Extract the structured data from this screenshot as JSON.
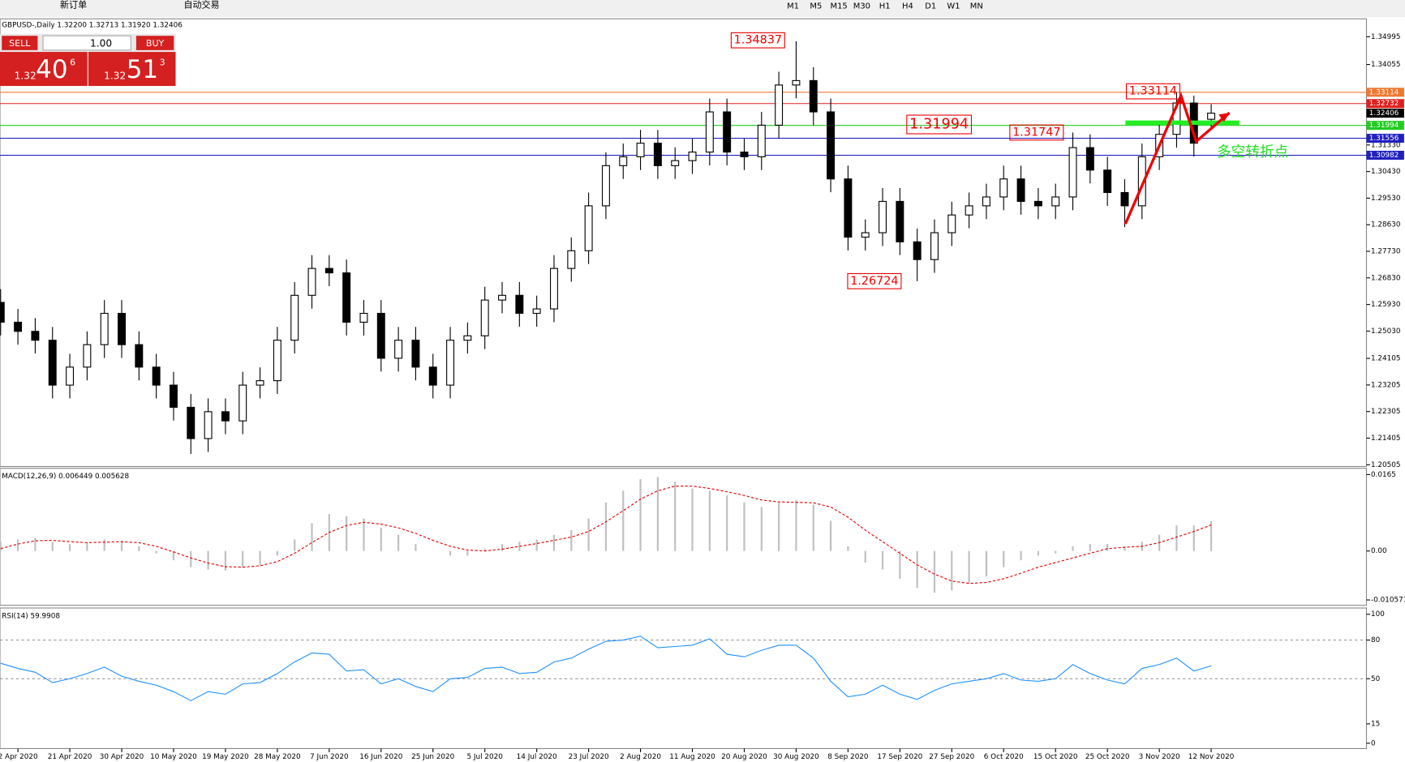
{
  "toolbar": {
    "buttons": [
      "新订单",
      "自动交易"
    ],
    "timeframes": [
      "M1",
      "M5",
      "M15",
      "M30",
      "H1",
      "H4",
      "D1",
      "W1",
      "MN"
    ]
  },
  "trade_panel": {
    "sell": "SELL",
    "buy": "BUY",
    "lots": "1.00",
    "bid_prefix": "1.32",
    "bid_big": "40",
    "bid_small": "6",
    "ask_prefix": "1.32",
    "ask_big": "51",
    "ask_small": "3"
  },
  "chart_data": [
    {
      "type": "candlestick",
      "title": "GBPUSD-,Daily 1.32200 1.32713 1.31920 1.32406",
      "categories": [
        null,
        "2 Apr 2020",
        null,
        null,
        "21 Apr 2020",
        null,
        null,
        "30 Apr 2020",
        null,
        null,
        "10 May 2020",
        null,
        null,
        "19 May 2020",
        null,
        null,
        "28 May 2020",
        null,
        null,
        "7 Jun 2020",
        null,
        null,
        "16 Jun 2020",
        null,
        null,
        "25 Jun 2020",
        null,
        null,
        "5 Jul 2020",
        null,
        null,
        "14 Jul 2020",
        null,
        null,
        "23 Jul 2020",
        null,
        null,
        "2 Aug 2020",
        null,
        null,
        "11 Aug 2020",
        null,
        null,
        "20 Aug 2020",
        null,
        null,
        "30 Aug 2020",
        null,
        null,
        "8 Sep 2020",
        null,
        null,
        "17 Sep 2020",
        null,
        null,
        "27 Sep 2020",
        null,
        null,
        "6 Oct 2020",
        null,
        null,
        "15 Oct 2020",
        null,
        null,
        "25 Oct 2020",
        null,
        null,
        "3 Nov 2020",
        null,
        null,
        "12 Nov 2020"
      ],
      "open": [
        1.26,
        1.2533,
        1.2502,
        1.2472,
        1.232,
        1.2381,
        1.2457,
        1.2563,
        1.2457,
        1.2381,
        1.232,
        1.2245,
        1.2139,
        1.223,
        1.2199,
        1.232,
        1.2335,
        1.2472,
        1.2624,
        1.2715,
        1.27,
        1.2533,
        1.2563,
        1.2411,
        1.2472,
        1.2381,
        1.232,
        1.2472,
        1.2487,
        1.2608,
        1.2624,
        1.2563,
        1.2578,
        1.2715,
        1.2775,
        1.2927,
        1.3063,
        1.3093,
        1.3139,
        1.3063,
        1.308,
        1.3109,
        1.3245,
        1.3109,
        1.3093,
        1.32,
        1.3336,
        1.3351,
        1.3245,
        1.3018,
        1.2821,
        1.2836,
        1.2942,
        1.2805,
        1.2745,
        1.2836,
        1.2896,
        1.2927,
        1.2957,
        1.3018,
        1.2942,
        1.2927,
        1.2957,
        1.3124,
        1.3048,
        1.2972,
        1.2927,
        1.3093,
        1.3169,
        1.3275,
        1.322
      ],
      "high": [
        1.2645,
        1.2578,
        1.2547,
        1.2517,
        1.2426,
        1.2502,
        1.2608,
        1.2608,
        1.2502,
        1.2426,
        1.2365,
        1.229,
        1.2275,
        1.2275,
        1.2365,
        1.238,
        1.2517,
        1.2669,
        1.276,
        1.276,
        1.2745,
        1.2608,
        1.2608,
        1.2517,
        1.2517,
        1.2426,
        1.2517,
        1.2532,
        1.2653,
        1.2669,
        1.2669,
        1.2623,
        1.276,
        1.282,
        1.2972,
        1.3108,
        1.3138,
        1.3184,
        1.3184,
        1.3125,
        1.3154,
        1.329,
        1.329,
        1.3154,
        1.3245,
        1.3381,
        1.3484,
        1.3396,
        1.329,
        1.3063,
        1.2881,
        1.2987,
        1.2987,
        1.285,
        1.2881,
        1.2941,
        1.2972,
        1.3002,
        1.3063,
        1.3063,
        1.2987,
        1.3002,
        1.3175,
        1.3169,
        1.3093,
        1.3017,
        1.3138,
        1.3214,
        1.3311,
        1.33,
        1.3271
      ],
      "low": [
        1.2488,
        1.2457,
        1.2427,
        1.2275,
        1.2275,
        1.2336,
        1.2412,
        1.2412,
        1.2336,
        1.2275,
        1.22,
        1.2087,
        1.2094,
        1.2154,
        1.2154,
        1.2275,
        1.229,
        1.2427,
        1.2579,
        1.2655,
        1.2488,
        1.2488,
        1.2366,
        1.2366,
        1.2336,
        1.2275,
        1.2275,
        1.2427,
        1.2442,
        1.2563,
        1.2518,
        1.2518,
        1.2533,
        1.267,
        1.273,
        1.2882,
        1.3018,
        1.3048,
        1.3018,
        1.3018,
        1.3035,
        1.3064,
        1.3064,
        1.3048,
        1.3048,
        1.3155,
        1.3291,
        1.32,
        1.2973,
        1.2776,
        1.2776,
        1.2791,
        1.276,
        1.2672,
        1.27,
        1.2791,
        1.2851,
        1.2882,
        1.2912,
        1.2897,
        1.2882,
        1.2882,
        1.2912,
        1.3003,
        1.2927,
        1.2855,
        1.2882,
        1.3048,
        1.3124,
        1.3094,
        1.3192
      ],
      "close": [
        1.2533,
        1.2502,
        1.2472,
        1.232,
        1.2381,
        1.2457,
        1.2563,
        1.2457,
        1.2381,
        1.232,
        1.2245,
        1.2139,
        1.223,
        1.2199,
        1.232,
        1.2335,
        1.2472,
        1.2624,
        1.2715,
        1.27,
        1.2533,
        1.2563,
        1.2411,
        1.2472,
        1.2381,
        1.232,
        1.2472,
        1.2487,
        1.2608,
        1.2624,
        1.2563,
        1.2578,
        1.2715,
        1.2775,
        1.2927,
        1.3063,
        1.3093,
        1.3139,
        1.3063,
        1.308,
        1.3109,
        1.3245,
        1.3109,
        1.3093,
        1.32,
        1.3336,
        1.3351,
        1.3245,
        1.3018,
        1.2821,
        1.2836,
        1.2942,
        1.2805,
        1.2745,
        1.2836,
        1.2896,
        1.2927,
        1.2957,
        1.3018,
        1.2942,
        1.2927,
        1.2957,
        1.3124,
        1.3048,
        1.2972,
        1.2927,
        1.3093,
        1.3169,
        1.3275,
        1.3139,
        1.32406
      ],
      "ylim": [
        1.20505,
        1.34995
      ],
      "yticks": [
        1.34995,
        1.34055,
        {
          "value": 1.3133,
          "label": "1.31330"
        },
        {
          "value": 1.3043,
          "label": "1.30430"
        },
        {
          "value": 1.2953,
          "label": "1.29530"
        },
        {
          "value": 1.2863,
          "label": "1.28630"
        },
        {
          "value": 1.2773,
          "label": "1.27730"
        },
        {
          "value": 1.2683,
          "label": "1.26830"
        },
        {
          "value": 1.2593,
          "label": "1.25930"
        },
        {
          "value": 1.2503,
          "label": "1.25030"
        },
        1.24105,
        1.23205,
        1.22305,
        1.21405,
        1.20505
      ],
      "hlines": [
        {
          "value": 1.33114,
          "color": "#f07830"
        },
        {
          "value": 1.32732,
          "color": "#e02020"
        },
        {
          "value": 1.31994,
          "color": "#22cc22"
        },
        {
          "value": 1.31556,
          "color": "#2020c0"
        },
        {
          "value": 1.30982,
          "color": "#2020c0"
        }
      ],
      "last_price": 1.32406,
      "annotations": [
        "1.34837",
        "1.31994",
        "1.31747",
        "1.26724",
        "1.33114",
        "多空转折点"
      ]
    },
    {
      "type": "macd",
      "title": "MACD(12,26,9) 0.006449 0.005628",
      "ylim": [
        -0.010571,
        0.0165
      ],
      "yticks": [
        0.0165,
        {
          "value": 0,
          "label": "0.00"
        },
        -0.010571
      ],
      "series": [
        {
          "name": "MACD",
          "color": "#c0c0c0",
          "values": [
            0.002,
            0.0025,
            0.0028,
            0.002,
            0.0015,
            0.0018,
            0.0025,
            0.0022,
            0.001,
            -0.0005,
            -0.002,
            -0.0035,
            -0.004,
            -0.0042,
            -0.0035,
            -0.003,
            -0.001,
            0.0025,
            0.006,
            0.008,
            0.0075,
            0.007,
            0.005,
            0.0035,
            0.0015,
            0,
            -0.001,
            -0.001,
            0.0005,
            0.0015,
            0.002,
            0.0025,
            0.0035,
            0.0045,
            0.007,
            0.0105,
            0.013,
            0.0155,
            0.016,
            0.015,
            0.0135,
            0.013,
            0.012,
            0.0105,
            0.0095,
            0.0105,
            0.011,
            0.01,
            0.0065,
            0.001,
            -0.0025,
            -0.004,
            -0.006,
            -0.008,
            -0.009,
            -0.0085,
            -0.007,
            -0.0055,
            -0.0035,
            -0.002,
            -0.001,
            -0.0005,
            0.001,
            0.0015,
            0.0015,
            0.001,
            0.002,
            0.0035,
            0.0055,
            0.0055,
            0.006449
          ]
        },
        {
          "name": "Signal",
          "color": "#e00000",
          "values": [
            0.0005,
            0.0015,
            0.0022,
            0.0023,
            0.002,
            0.0018,
            0.0019,
            0.002,
            0.0018,
            0.001,
            -0.0002,
            -0.0015,
            -0.0026,
            -0.0034,
            -0.0035,
            -0.0032,
            -0.0023,
            -0.0005,
            0.0018,
            0.004,
            0.0055,
            0.0062,
            0.0058,
            0.005,
            0.0038,
            0.0023,
            0.001,
            0.0002,
            0,
            0.0004,
            0.001,
            0.0016,
            0.0023,
            0.003,
            0.0042,
            0.0063,
            0.0087,
            0.0112,
            0.013,
            0.014,
            0.014,
            0.0135,
            0.0128,
            0.012,
            0.011,
            0.0106,
            0.0105,
            0.0104,
            0.0095,
            0.0073,
            0.0045,
            0.002,
            -0.0005,
            -0.003,
            -0.005,
            -0.0065,
            -0.007,
            -0.0068,
            -0.006,
            -0.0048,
            -0.0035,
            -0.0025,
            -0.0015,
            -0.0005,
            0.0005,
            0.0008,
            0.001,
            0.0018,
            0.003,
            0.0042,
            0.005628
          ]
        }
      ]
    },
    {
      "type": "line",
      "title": "RSI(14) 59.9908",
      "ylim": [
        0,
        100
      ],
      "yticks": [
        100,
        80,
        50,
        15,
        0
      ],
      "levels": [
        80,
        50
      ],
      "color": "#1e90ff",
      "values": [
        62,
        58,
        55,
        47,
        50,
        54,
        59,
        52,
        48,
        45,
        40,
        33,
        40,
        38,
        46,
        47,
        54,
        63,
        70,
        69,
        56,
        57,
        46,
        50,
        44,
        40,
        50,
        51,
        58,
        59,
        54,
        55,
        63,
        66,
        73,
        79,
        80,
        83,
        74,
        75,
        76,
        81,
        69,
        67,
        72,
        76,
        76,
        66,
        48,
        36,
        38,
        45,
        38,
        34,
        41,
        46,
        48,
        50,
        54,
        49,
        48,
        50,
        61,
        54,
        49,
        46,
        58,
        61,
        66,
        56,
        59.9908
      ]
    }
  ]
}
